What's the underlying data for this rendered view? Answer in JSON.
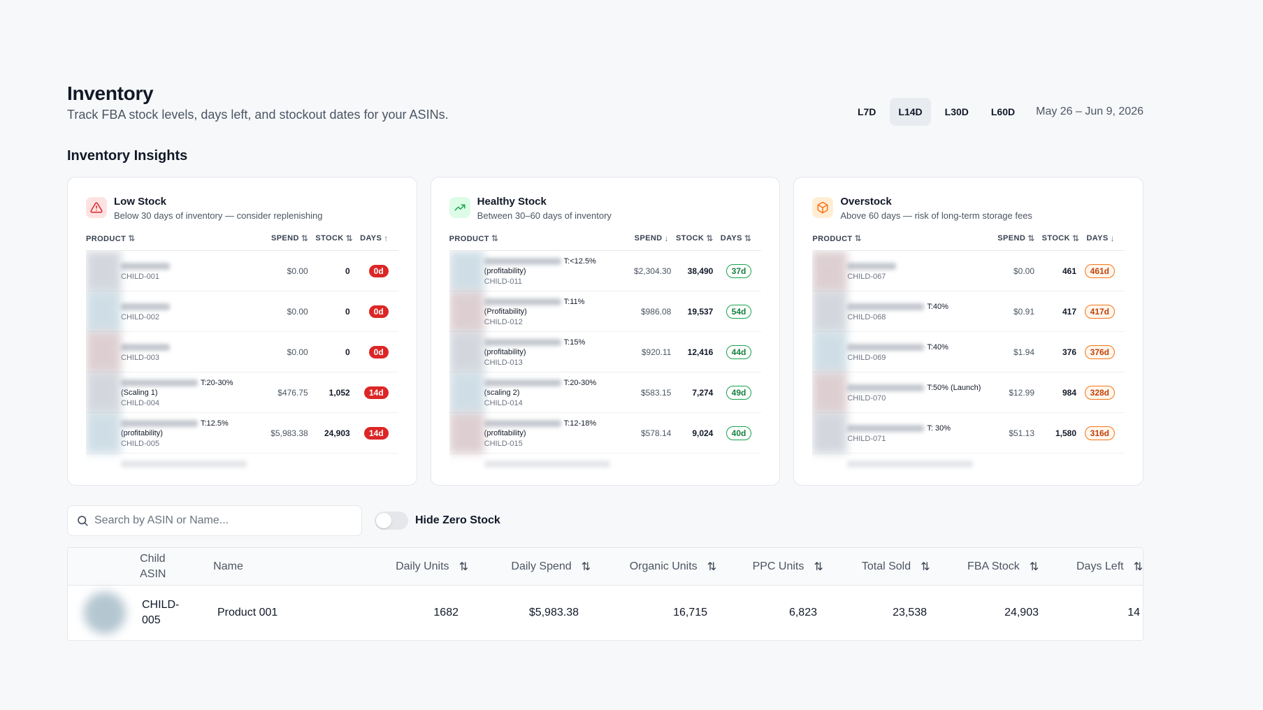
{
  "header": {
    "title": "Inventory",
    "subtitle": "Track FBA stock levels, days left, and stockout dates for your ASINs."
  },
  "range": {
    "options": [
      "L7D",
      "L14D",
      "L30D",
      "L60D"
    ],
    "active": "L14D",
    "date": "May 26 – Jun 9, 2026"
  },
  "insights": {
    "title": "Inventory Insights",
    "cards": [
      {
        "name": "Low Stock",
        "desc": "Below 30 days of inventory — consider replenishing",
        "icon": "warning-triangle-icon",
        "color": "#dc2626",
        "headers": {
          "product": "PRODUCT",
          "spend": "SPEND",
          "stock": "STOCK",
          "days": "DAYS"
        },
        "rows": [
          {
            "label": "",
            "child": "CHILD-001",
            "spend": "$0.00",
            "stock": "0",
            "days": "0d"
          },
          {
            "label": "",
            "child": "CHILD-002",
            "spend": "$0.00",
            "stock": "0",
            "days": "0d"
          },
          {
            "label": "",
            "child": "CHILD-003",
            "spend": "$0.00",
            "stock": "0",
            "days": "0d"
          },
          {
            "label": "T:20-30% (Scaling 1)",
            "child": "CHILD-004",
            "spend": "$476.75",
            "stock": "1,052",
            "days": "14d"
          },
          {
            "label": "T:12.5% (profitability)",
            "child": "CHILD-005",
            "spend": "$5,983.38",
            "stock": "24,903",
            "days": "14d"
          }
        ]
      },
      {
        "name": "Healthy Stock",
        "desc": "Between 30–60 days of inventory",
        "icon": "trending-up-icon",
        "color": "#16a34a",
        "headers": {
          "product": "PRODUCT",
          "spend": "SPEND",
          "stock": "STOCK",
          "days": "DAYS"
        },
        "rows": [
          {
            "label": "T:<12.5% (profitability)",
            "child": "CHILD-011",
            "spend": "$2,304.30",
            "stock": "38,490",
            "days": "37d"
          },
          {
            "label": "T:11% (Profitability)",
            "child": "CHILD-012",
            "spend": "$986.08",
            "stock": "19,537",
            "days": "54d"
          },
          {
            "label": "T:15% (profitability)",
            "child": "CHILD-013",
            "spend": "$920.11",
            "stock": "12,416",
            "days": "44d"
          },
          {
            "label": "T:20-30% (scaling 2)",
            "child": "CHILD-014",
            "spend": "$583.15",
            "stock": "7,274",
            "days": "49d"
          },
          {
            "label": "T:12-18% (profitability)",
            "child": "CHILD-015",
            "spend": "$578.14",
            "stock": "9,024",
            "days": "40d"
          }
        ]
      },
      {
        "name": "Overstock",
        "desc": "Above 60 days — risk of long-term storage fees",
        "icon": "box-icon",
        "color": "#f97316",
        "headers": {
          "product": "PRODUCT",
          "spend": "SPEND",
          "stock": "STOCK",
          "days": "DAYS"
        },
        "rows": [
          {
            "label": "",
            "child": "CHILD-067",
            "spend": "$0.00",
            "stock": "461",
            "days": "461d"
          },
          {
            "label": "T:40%",
            "child": "CHILD-068",
            "spend": "$0.91",
            "stock": "417",
            "days": "417d"
          },
          {
            "label": "T:40%",
            "child": "CHILD-069",
            "spend": "$1.94",
            "stock": "376",
            "days": "376d"
          },
          {
            "label": "T:50% (Launch)",
            "child": "CHILD-070",
            "spend": "$12.99",
            "stock": "984",
            "days": "328d"
          },
          {
            "label": "T: 30%",
            "child": "CHILD-071",
            "spend": "$51.13",
            "stock": "1,580",
            "days": "316d"
          }
        ]
      }
    ]
  },
  "search": {
    "placeholder": "Search by ASIN or Name..."
  },
  "toggle": {
    "label": "Hide Zero Stock"
  },
  "table": {
    "headers": {
      "asin": "Child ASIN",
      "name": "Name",
      "daily_units": "Daily Units",
      "daily_spend": "Daily Spend",
      "organic_units": "Organic Units",
      "ppc_units": "PPC Units",
      "total_sold": "Total Sold",
      "fba_stock": "FBA Stock",
      "days_left": "Days Left"
    },
    "rows": [
      {
        "asin": "CHILD-005",
        "name": "Product 001",
        "daily_units": "1682",
        "daily_spend": "$5,983.38",
        "organic_units": "16,715",
        "ppc_units": "6,823",
        "total_sold": "23,538",
        "fba_stock": "24,903",
        "days_left": "14"
      }
    ]
  }
}
